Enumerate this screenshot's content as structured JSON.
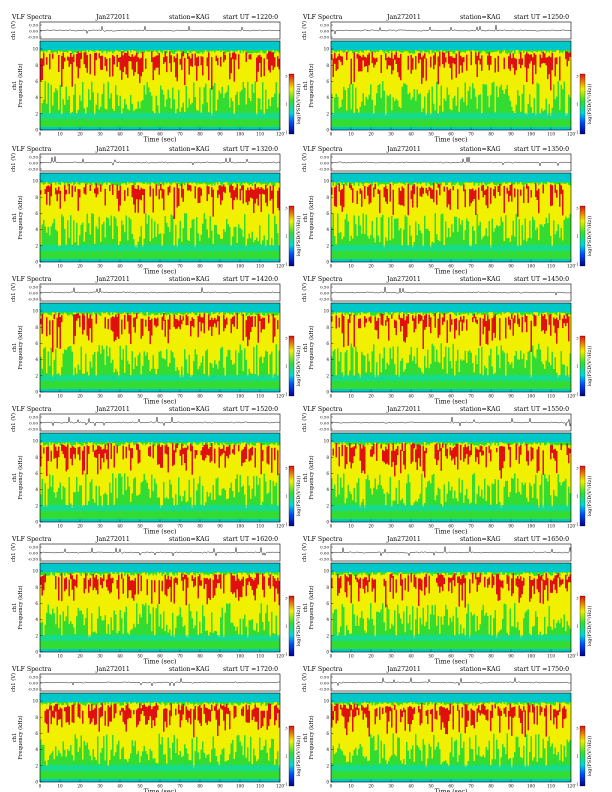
{
  "common": {
    "title": "VLF Spectra",
    "date": "Jan272011",
    "station": "station=KAG",
    "start_prefix": "start  UT  =",
    "ch1_label": "ch1 (V)",
    "freq_label": "Frequency (kHz)",
    "ch1_overlay": "ch1",
    "time_label": "Time (sec)",
    "cbar_label": "log(PSD(V²/Hz))",
    "colors": {
      "bg": "#00c8c8",
      "low": "#00d8d8",
      "mid": "#32dc32",
      "yellow": "#f0f000",
      "high": "#e01010",
      "line": "#000000"
    }
  },
  "panels": [
    {
      "start": "1220:0"
    },
    {
      "start": "1250:0"
    },
    {
      "start": "1320:0"
    },
    {
      "start": "1350:0"
    },
    {
      "start": "1420:0"
    },
    {
      "start": "1450:0"
    },
    {
      "start": "1520:0"
    },
    {
      "start": "1550:0"
    },
    {
      "start": "1620:0"
    },
    {
      "start": "1650:0"
    },
    {
      "start": "1720:0"
    },
    {
      "start": "1750:0"
    }
  ],
  "chart_data": {
    "type": "heatmap",
    "x": {
      "label": "Time (sec)",
      "range": [
        0,
        120
      ],
      "ticks": [
        0,
        10,
        20,
        30,
        40,
        50,
        60,
        70,
        80,
        90,
        100,
        110,
        120
      ]
    },
    "y_spectrum": {
      "label": "Frequency (kHz)",
      "range": [
        0,
        10
      ],
      "ticks": [
        0,
        2,
        4,
        6,
        8,
        10
      ]
    },
    "y_ch1": {
      "label": "ch1 (V)",
      "ticks": [
        "0.50",
        "0.00",
        "-0.50"
      ]
    },
    "colorbar": {
      "label": "log(PSD(V²/Hz))",
      "ticks": [
        3,
        1,
        -1
      ]
    }
  }
}
